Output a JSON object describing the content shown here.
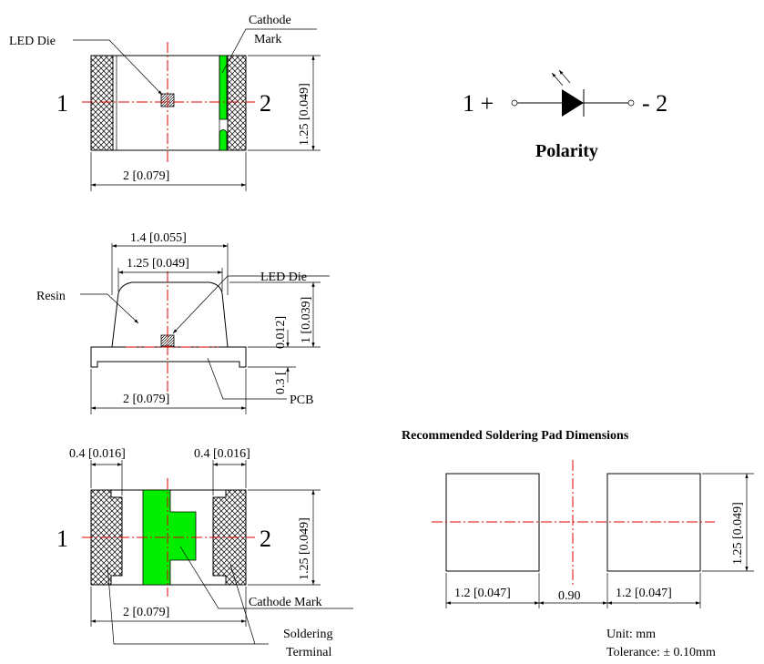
{
  "top_view": {
    "led_die": "LED Die",
    "cathode_mark_line1": "Cathode",
    "cathode_mark_line2": "Mark",
    "pin1": "1",
    "pin2": "2",
    "width_dim": "2 [0.079]",
    "height_dim": "1.25 [0.049]"
  },
  "polarity": {
    "left": "1 +",
    "right": "- 2",
    "title": "Polarity"
  },
  "side_view": {
    "top_width_dim": "1.4 [0.055]",
    "inner_width_dim": "1.25 [0.049]",
    "resin": "Resin",
    "led_die": "LED Die",
    "height_small_dim": "0.012]",
    "height_dim": "1 [0.039]",
    "pcb_thickness_dim": "0.3 [",
    "width_dim": "2 [0.079]",
    "pcb": "PCB"
  },
  "bottom_view": {
    "left_terminal_dim": "0.4 [0.016]",
    "right_terminal_dim": "0.4 [0.016]",
    "pin1": "1",
    "pin2": "2",
    "height_dim": "1.25 [0.049]",
    "width_dim": "2 [0.079]",
    "cathode_mark": "Cathode Mark",
    "soldering_line1": "Soldering",
    "soldering_line2": "Terminal"
  },
  "pads": {
    "title": "Recommended Soldering Pad Dimensions",
    "left_width_dim": "1.2 [0.047]",
    "gap_dim": "0.90",
    "right_width_dim": "1.2 [0.047]",
    "height_dim": "1.25 [0.049]",
    "unit": "Unit: mm",
    "tolerance": "Tolerance: ± 0.10mm"
  },
  "colors": {
    "green": "#00ee00",
    "centerline": "#e00000",
    "line": "#000000"
  }
}
